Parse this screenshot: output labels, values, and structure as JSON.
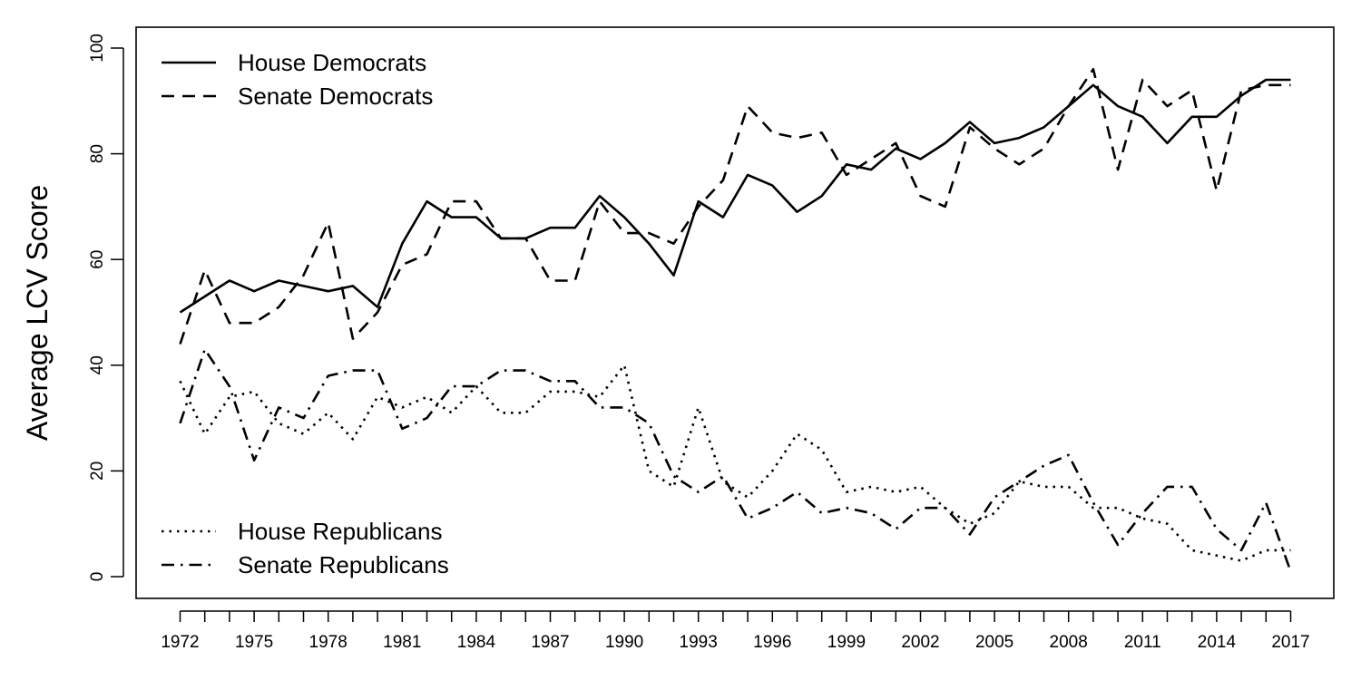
{
  "chart_data": {
    "type": "line",
    "title": "",
    "xlabel": "",
    "ylabel": "Average LCV Score",
    "xlim": [
      1970.2,
      1018.8
    ],
    "ylim": [
      -4,
      100
    ],
    "grid": false,
    "x_tick_labels": [
      "1972",
      "1975",
      "1978",
      "1981",
      "1984",
      "1987",
      "1990",
      "1993",
      "1996",
      "1999",
      "2002",
      "2005",
      "2008",
      "2011",
      "2014",
      "2017"
    ],
    "y_tick_labels": [
      "0",
      "20",
      "40",
      "60",
      "80",
      "100"
    ],
    "x": [
      1972,
      1973,
      1974,
      1975,
      1976,
      1977,
      1978,
      1979,
      1980,
      1981,
      1982,
      1983,
      1984,
      1985,
      1986,
      1987,
      1988,
      1989,
      1990,
      1991,
      1992,
      1993,
      1994,
      1995,
      1996,
      1997,
      1998,
      1999,
      2000,
      2001,
      2002,
      2003,
      2004,
      2005,
      2006,
      2007,
      2008,
      2009,
      2010,
      2011,
      2012,
      2013,
      2014,
      2015,
      2016,
      2017
    ],
    "legends": [
      {
        "placement": "top-left",
        "entries": [
          "House Democrats",
          "Senate Democrats"
        ]
      },
      {
        "placement": "bottom-left",
        "entries": [
          "House Republicans",
          "Senate Republicans"
        ]
      }
    ],
    "series": [
      {
        "name": "House Democrats",
        "line_style": "solid",
        "values": [
          50,
          53,
          56,
          54,
          56,
          55,
          54,
          55,
          51,
          63,
          71,
          68,
          68,
          64,
          64,
          66,
          66,
          72,
          68,
          63,
          57,
          71,
          68,
          76,
          74,
          69,
          72,
          78,
          77,
          81,
          79,
          82,
          86,
          82,
          83,
          85,
          89,
          93,
          89,
          87,
          82,
          87,
          87,
          91,
          94,
          94
        ]
      },
      {
        "name": "Senate Democrats",
        "line_style": "dashed",
        "values": [
          44,
          58,
          48,
          48,
          51,
          57,
          67,
          45,
          50,
          59,
          61,
          71,
          71,
          64,
          64,
          56,
          56,
          71,
          65,
          65,
          63,
          70,
          75,
          89,
          84,
          83,
          84,
          76,
          79,
          82,
          72,
          70,
          85,
          81,
          78,
          81,
          89,
          96,
          77,
          94,
          89,
          92,
          73,
          92,
          93,
          93
        ]
      },
      {
        "name": "House Republicans",
        "line_style": "dotted",
        "values": [
          37,
          27,
          34,
          35,
          29,
          27,
          31,
          26,
          34,
          32,
          34,
          31,
          36,
          31,
          31,
          35,
          35,
          34,
          40,
          20,
          17,
          32,
          18,
          15,
          20,
          27,
          24,
          16,
          17,
          16,
          17,
          13,
          10,
          12,
          18,
          17,
          17,
          13,
          13,
          11,
          10,
          5,
          4,
          3,
          5,
          5
        ]
      },
      {
        "name": "Senate Republicans",
        "line_style": "dashdot",
        "values": [
          29,
          43,
          36,
          22,
          32,
          30,
          38,
          39,
          39,
          28,
          30,
          36,
          36,
          39,
          39,
          37,
          37,
          32,
          32,
          29,
          19,
          16,
          19,
          11,
          13,
          16,
          12,
          13,
          12,
          9,
          13,
          13,
          8,
          15,
          18,
          21,
          23,
          14,
          6,
          12,
          17,
          17,
          9,
          5,
          14,
          1
        ]
      }
    ]
  }
}
